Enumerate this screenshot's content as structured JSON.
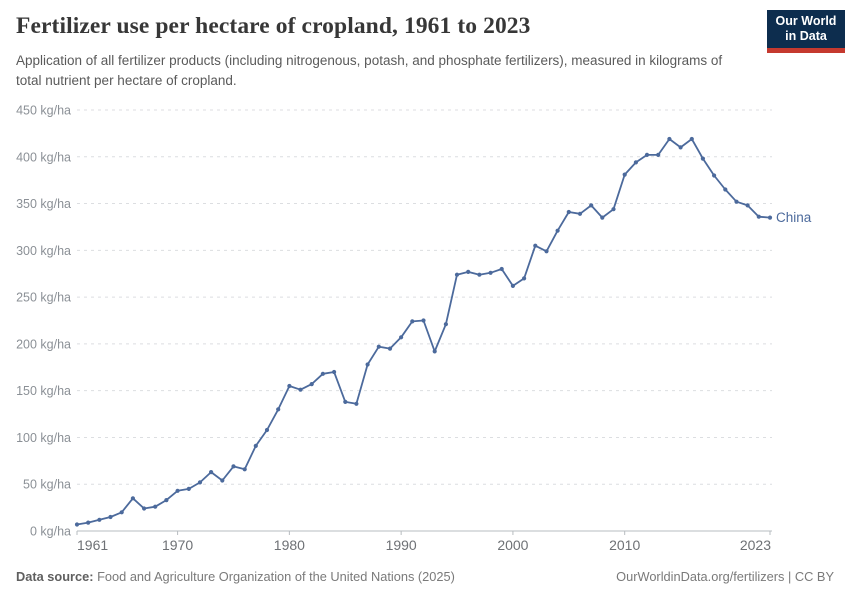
{
  "header": {
    "title": "Fertilizer use per hectare of cropland, 1961 to 2023",
    "subtitle": "Application of all fertilizer products (including nitrogenous, potash, and phosphate fertilizers), measured in kilograms of total nutrient per hectare of cropland.",
    "logo_line1": "Our World",
    "logo_line2": "in Data"
  },
  "chart_data": {
    "type": "line",
    "title": "Fertilizer use per hectare of cropland, 1961 to 2023",
    "unit": "kg/ha",
    "ylim": [
      0,
      450
    ],
    "ytick_step": 50,
    "ytick_label_suffix": " kg/ha",
    "xlim": [
      1961,
      2023
    ],
    "xticks": [
      1961,
      1970,
      1980,
      1990,
      2000,
      2010,
      2023
    ],
    "grid": "horizontal-dashed",
    "legend_position": "line-end-label",
    "x": [
      1961,
      1962,
      1963,
      1964,
      1965,
      1966,
      1967,
      1968,
      1969,
      1970,
      1971,
      1972,
      1973,
      1974,
      1975,
      1976,
      1977,
      1978,
      1979,
      1980,
      1981,
      1982,
      1983,
      1984,
      1985,
      1986,
      1987,
      1988,
      1989,
      1990,
      1991,
      1992,
      1993,
      1994,
      1995,
      1996,
      1997,
      1998,
      1999,
      2000,
      2001,
      2002,
      2003,
      2004,
      2005,
      2006,
      2007,
      2008,
      2009,
      2010,
      2011,
      2012,
      2013,
      2014,
      2015,
      2016,
      2017,
      2018,
      2019,
      2020,
      2021,
      2022,
      2023
    ],
    "series": [
      {
        "name": "China",
        "color": "#4c6a9c",
        "values": [
          7,
          9,
          12,
          15,
          20,
          35,
          24,
          26,
          33,
          43,
          45,
          52,
          63,
          54,
          69,
          66,
          91,
          108,
          130,
          155,
          151,
          157,
          168,
          170,
          138,
          136,
          178,
          197,
          195,
          207,
          224,
          225,
          192,
          221,
          274,
          277,
          274,
          276,
          280,
          262,
          270,
          305,
          299,
          321,
          341,
          339,
          348,
          335,
          344,
          381,
          394,
          402,
          402,
          419,
          410,
          419,
          398,
          380,
          365,
          352,
          348,
          336,
          335
        ]
      }
    ]
  },
  "footer": {
    "source_label": "Data source:",
    "source_text": "Food and Agriculture Organization of the United Nations (2025)",
    "link_text": "OurWorldinData.org/fertilizers | CC BY"
  },
  "colors": {
    "line": "#4c6a9c",
    "grid": "#dcdee1",
    "axis": "#b7bcc0",
    "logo_bg": "#0d2d4e",
    "logo_stripe": "#c5392f"
  }
}
